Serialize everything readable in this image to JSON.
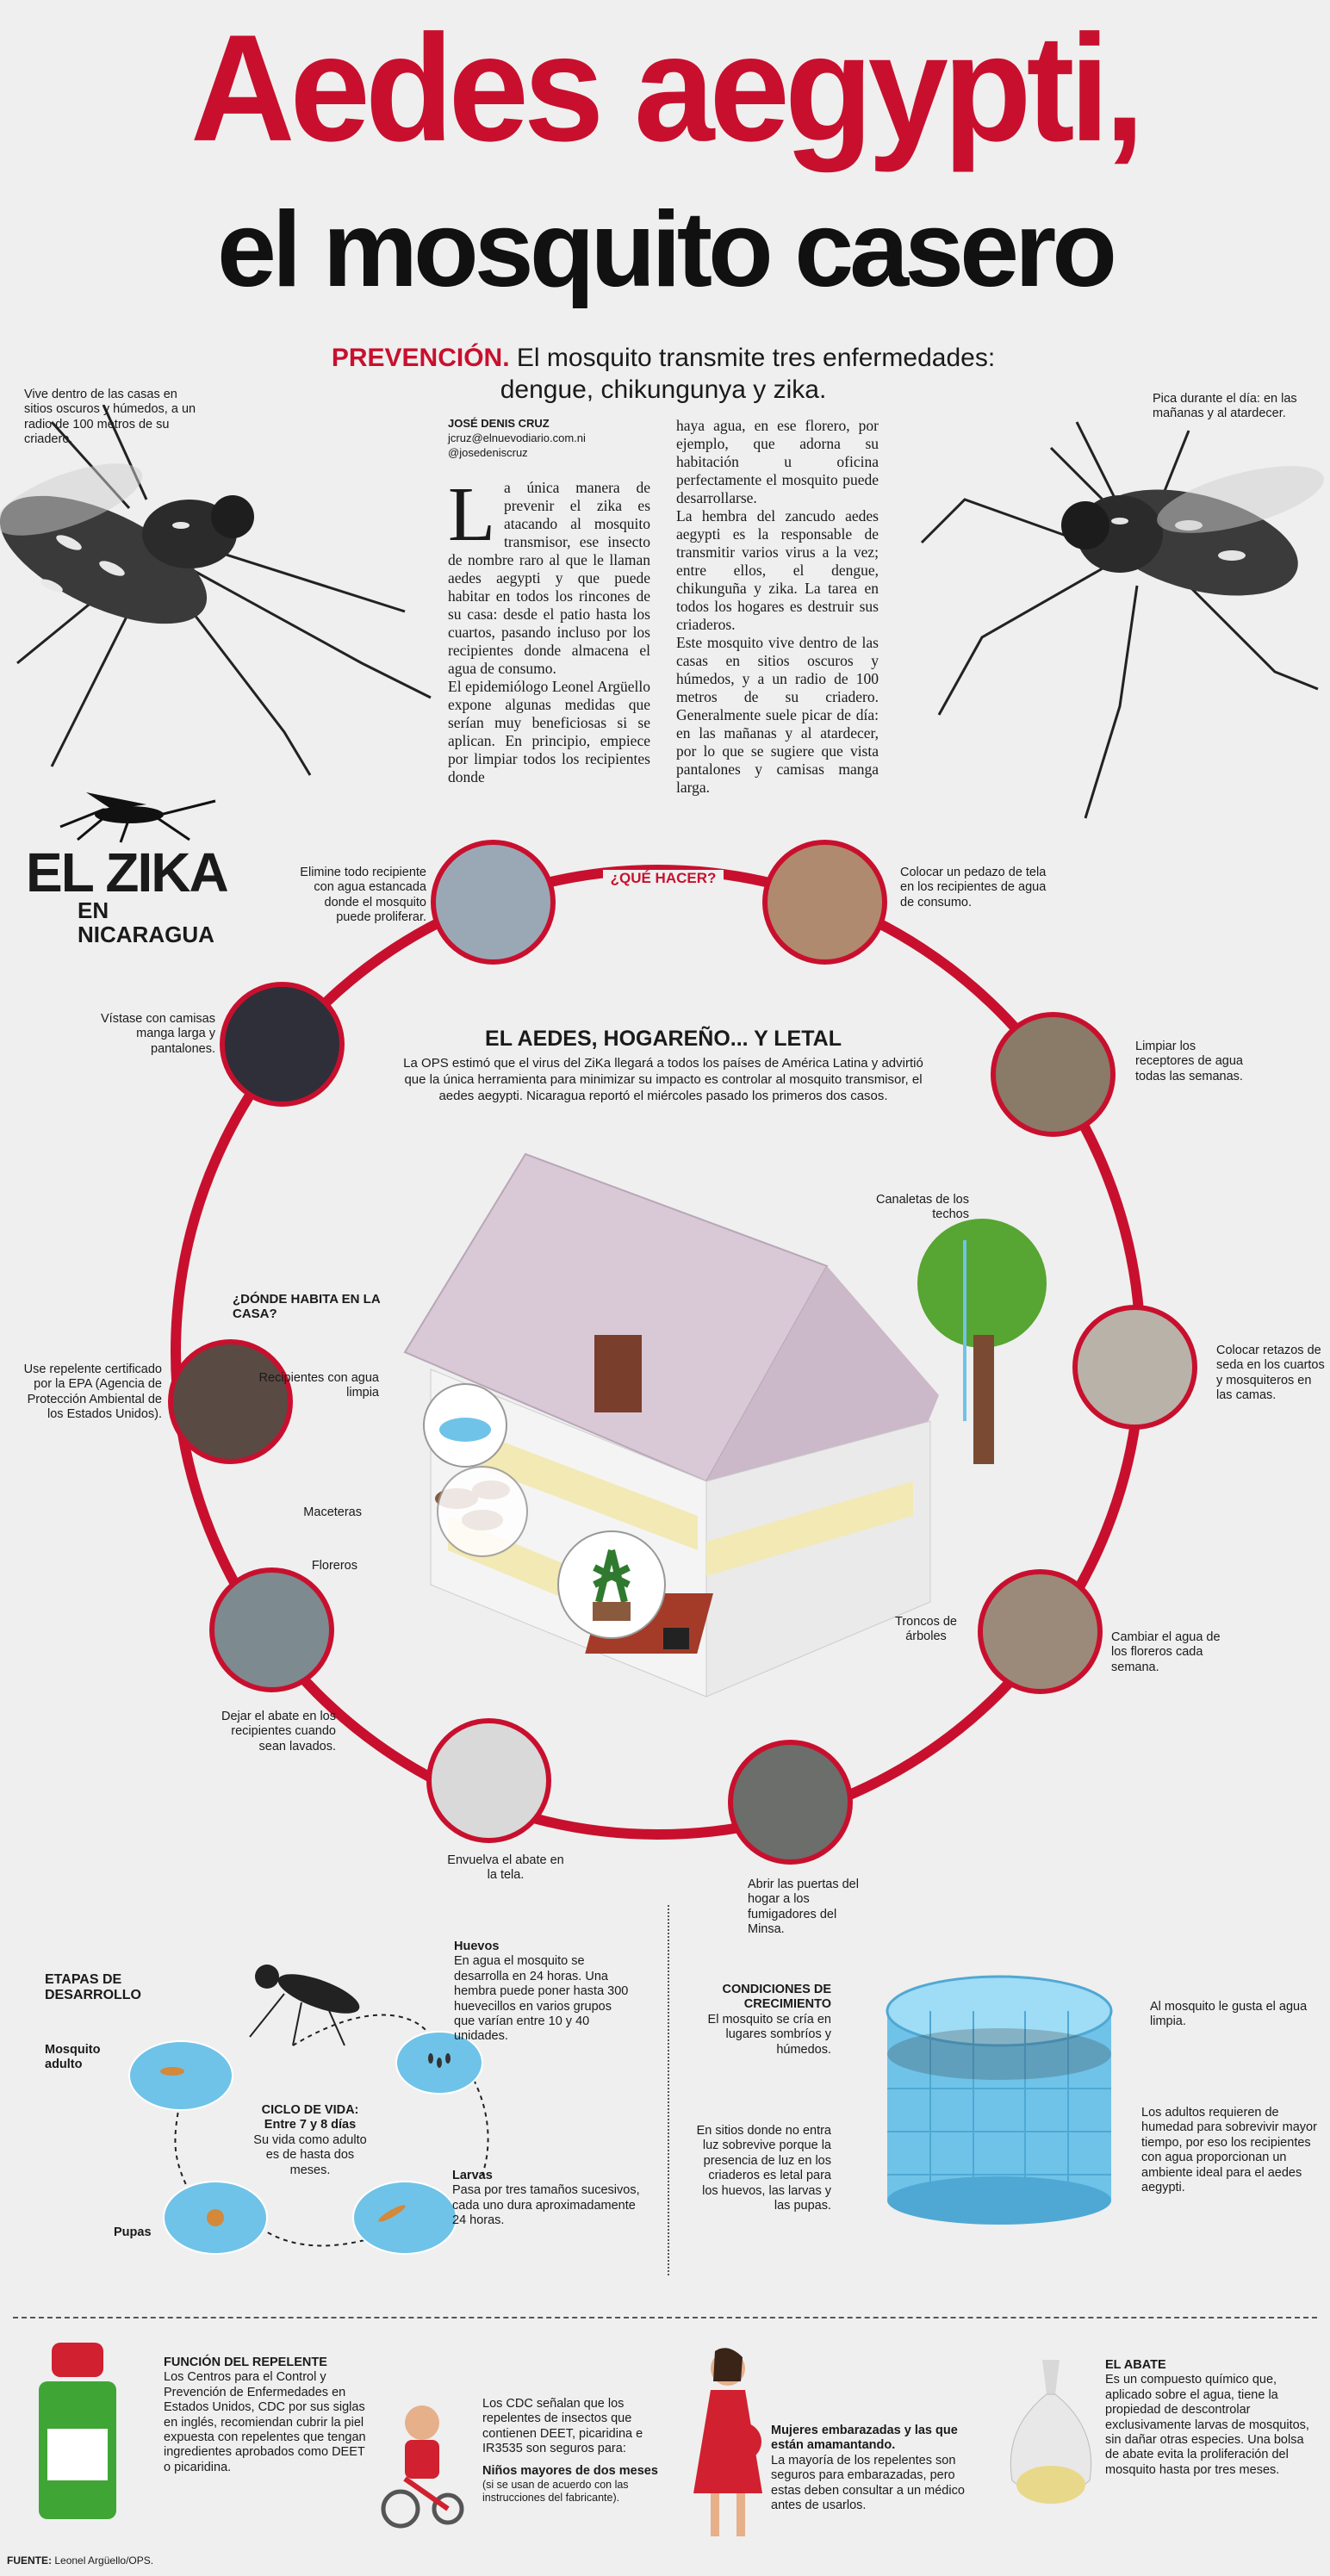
{
  "header": {
    "title_line1": "Aedes aegypti,",
    "title_line2": "el mosquito casero",
    "kicker": "PREVENCIÓN.",
    "deck": "El mosquito transmite tres enfermedades: dengue, chikungunya y zika."
  },
  "side_notes": {
    "left": "Vive dentro de las casas en sitios oscuros y húmedos, a un radio de 100 metros de su criadero.",
    "right": "Pica durante el día: en las mañanas y al atardecer."
  },
  "byline": {
    "author": "JOSÉ DENIS CRUZ",
    "email": "jcruz@elnuevodiario.com.ni",
    "handle": "@josedeniscruz"
  },
  "article": {
    "dropcap": "L",
    "col1": "a única manera de prevenir el zika es atacando al mosquito transmisor, ese insecto de nombre raro al que le llaman aedes aegypti y que puede habitar en todos los rincones de su casa: desde el patio hasta los cuartos, pasando incluso por los recipientes donde almacena el agua de consumo.",
    "col1b": "El epidemiólogo Leonel Argüello expone algunas medidas que serían muy beneficiosas si se aplican. En principio, empiece por limpiar todos los recipientes donde",
    "col2": "haya agua, en ese florero, por ejemplo, que adorna su habitación u oficina perfectamente el mosquito puede desarrollarse.",
    "col2b": "La hembra del zancudo aedes aegypti es la responsable de transmitir varios virus a la vez; entre ellos, el dengue, chikunguña y zika. La tarea en todos los hogares es destruir sus criaderos.",
    "col2c": "Este mosquito vive dentro de las casas en sitios oscuros y húmedos, y a un radio de 100 metros de su criadero. Generalmente suele picar de día: en las mañanas y al atardecer, por lo que se sugiere que vista pantalones y camisas manga larga."
  },
  "logo": {
    "line1": "EL ZIKA",
    "line2": "EN NICARAGUA"
  },
  "ring": {
    "label": "¿QUÉ HACER?",
    "heading": "EL AEDES, HOGAREÑO... Y LETAL",
    "intro": "La OPS estimó que el virus del ZiKa llegará a todos los países de América Latina y advirtió que la única herramienta para minimizar su impacto es controlar al mosquito transmisor, el aedes aegypti. Nicaragua reportó el miércoles pasado los primeros dos casos.",
    "items": [
      "Elimine todo recipiente con agua estancada donde el mosquito puede proliferar.",
      "Colocar un pedazo de tela en los recipientes de agua de consumo.",
      "Limpiar los receptores de agua todas las semanas.",
      "Colocar retazos de seda en los cuartos y mosquiteros en las camas.",
      "Cambiar el agua de los floreros cada semana.",
      "Abrir las puertas del hogar a los fumigadores del Minsa.",
      "Envuelva el abate en la tela.",
      "Dejar el abate en los recipientes cuando sean lavados.",
      "Use repelente certificado por la EPA (Agencia de Protección Ambiental de los Estados Unidos).",
      "Vístase con camisas manga larga y pantalones."
    ]
  },
  "house": {
    "question": "¿DÓNDE HABITA EN LA CASA?",
    "labels": {
      "recipientes": "Recipientes con agua limpia",
      "maceteras": "Maceteras",
      "floreros": "Floreros",
      "canaletas": "Canaletas de los techos",
      "troncos": "Troncos de árboles"
    }
  },
  "stages": {
    "title": "ETAPAS DE DESARROLLO",
    "adulto": "Mosquito adulto",
    "huevos_title": "Huevos",
    "huevos_text": "En agua el mosquito se desarrolla en 24 horas. Una hembra puede poner hasta 300 huevecillos en varios grupos que varían entre 10 y 40 unidades.",
    "ciclo_title": "CICLO DE VIDA: Entre 7 y 8 días",
    "ciclo_text": "Su vida como adulto es de hasta dos meses.",
    "larvas_title": "Larvas",
    "larvas_text": "Pasa por tres tamaños sucesivos, cada uno dura aproximadamente 24 horas.",
    "pupas": "Pupas"
  },
  "conditions": {
    "title": "CONDICIONES DE CRECIMIENTO",
    "text1": "El mosquito se cría en lugares sombríos y húmedos.",
    "text2": "En sitios donde no entra luz sobrevive porque la presencia de luz en los criaderos es letal para los huevos, las larvas y las pupas.",
    "right1": "Al mosquito le gusta el agua limpia.",
    "right2": "Los adultos requieren de humedad para sobrevivir mayor tiempo, por eso los recipientes con agua proporcionan un ambiente ideal para el aedes aegypti."
  },
  "footer": {
    "repelente_title": "FUNCIÓN DEL REPELENTE",
    "repelente_text": "Los Centros para el Control y Prevención de Enfermedades en Estados Unidos, CDC por sus siglas en inglés, recomiendan cubrir la piel expuesta con repelentes que tengan ingredientes aprobados como DEET o picaridina.",
    "cdc_text": "Los CDC señalan que los repelentes de insectos que contienen DEET, picaridina e IR3535 son seguros para:",
    "ninos_title": "Niños mayores de dos meses",
    "ninos_note": "(si se usan de acuerdo con las instrucciones del fabricante).",
    "mujeres_title": "Mujeres embarazadas y las que están amamantando.",
    "mujeres_text": "La mayoría de los repelentes son seguros para embarazadas, pero estas deben consultar a un médico antes de usarlos.",
    "abate_title": "EL ABATE",
    "abate_text": "Es un compuesto químico que, aplicado sobre el agua, tiene la propiedad de descontrolar exclusivamente larvas de mosquitos, sin dañar otras especies. Una bolsa de abate evita la proliferación del mosquito hasta por tres meses.",
    "fuente_label": "FUENTE:",
    "fuente_text": "Leonel Argüello/OPS."
  },
  "colors": {
    "accent": "#c8102e",
    "ring": "#c8102e",
    "water": "#6fc3e8"
  }
}
